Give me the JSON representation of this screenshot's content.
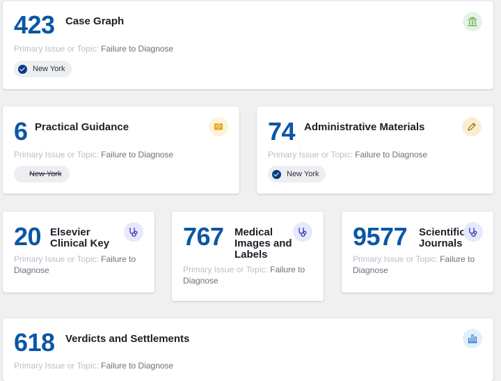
{
  "topic_label": "Primary Issue or Topic:",
  "cards": [
    {
      "count": "423",
      "title": "Case Graph",
      "topic": "Failure to Diagnose",
      "filter": "New York",
      "filter_state": "selected",
      "icon": "courthouse-icon",
      "icon_color": "#7bb661"
    },
    {
      "count": "6",
      "title": "Practical Guidance",
      "topic": "Failure to Diagnose",
      "filter": "New York",
      "filter_state": "excluded",
      "icon": "book-icon",
      "icon_color": "#e8a317"
    },
    {
      "count": "74",
      "title": "Administrative Materials",
      "topic": "Failure to Diagnose",
      "filter": "New York",
      "filter_state": "selected",
      "icon": "pen-icon",
      "icon_color": "#b8860b"
    },
    {
      "count": "20",
      "title": "Elsevier Clinical Key",
      "topic": "Failure to Diagnose",
      "icon": "stethoscope-icon",
      "icon_color": "#3b3fbf"
    },
    {
      "count": "767",
      "title": "Medical Images and Labels",
      "topic": "Failure to Diagnose",
      "icon": "stethoscope-icon",
      "icon_color": "#3b3fbf"
    },
    {
      "count": "9577",
      "title": "Scientific Journals",
      "topic": "Failure to Diagnose",
      "icon": "stethoscope-icon",
      "icon_color": "#3b3fbf"
    },
    {
      "count": "618",
      "title": "Verdicts and Settlements",
      "topic": "Failure to Diagnose",
      "icon": "bar-chart-icon",
      "icon_color": "#2a7ac9"
    }
  ]
}
